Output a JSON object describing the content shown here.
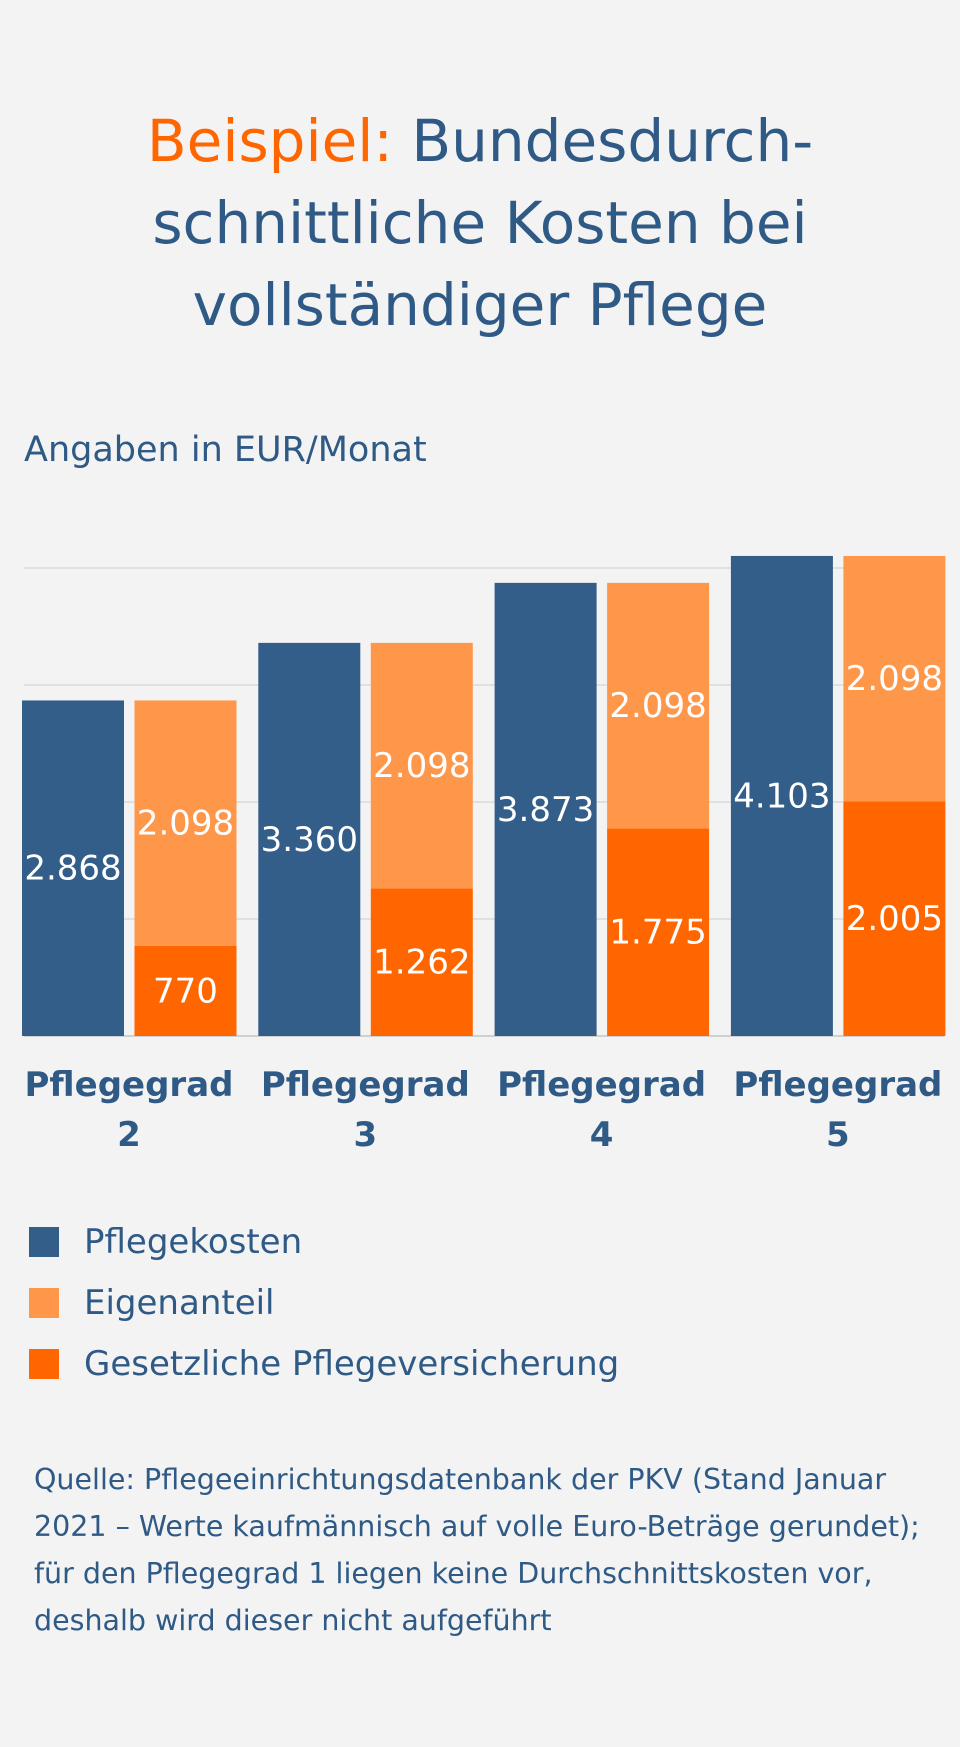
{
  "chart_data": {
    "type": "bar",
    "title_highlight": "Beispiel:",
    "title_lines": [
      "Bundesdurch-",
      "schnittliche Kosten bei",
      "vollständiger Pflege"
    ],
    "subtitle": "Angaben in EUR/Monat",
    "categories": [
      "Pflegegrad 2",
      "Pflegegrad 3",
      "Pflegegrad 4",
      "Pflegegrad 5"
    ],
    "series": [
      {
        "name": "Pflegekosten",
        "color": "#345e8a",
        "values": [
          2868,
          3360,
          3873,
          4103
        ],
        "value_labels": [
          "2.868",
          "3.360",
          "3.873",
          "4.103"
        ]
      },
      {
        "name": "Eigenanteil",
        "color": "#ff974a",
        "values": [
          2098,
          2098,
          2098,
          2098
        ],
        "value_labels": [
          "2.098",
          "2.098",
          "2.098",
          "2.098"
        ]
      },
      {
        "name": "Gesetzliche Pflegeversicherung",
        "color": "#ff6600",
        "values": [
          770,
          1262,
          1775,
          2005
        ],
        "value_labels": [
          "770",
          "1.262",
          "1.775",
          "2.005"
        ]
      }
    ],
    "ylim": [
      0,
      4200
    ],
    "yticks": [
      0,
      1000,
      2000,
      3000,
      4000
    ],
    "grid": true,
    "source": "Quelle: Pflegeeinrichtungsdatenbank der PKV (Stand Januar 2021 – Werte kaufmännisch auf volle Euro-Beträge gerundet); für den Pflegegrad 1 liegen keine Durchschnittskosten vor, deshalb wird dieser nicht aufgeführt"
  }
}
